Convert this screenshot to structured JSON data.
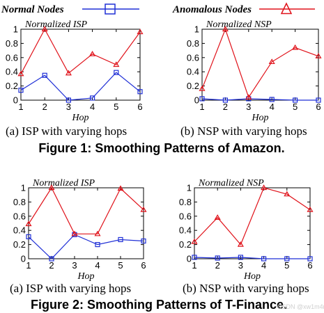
{
  "legend": {
    "normal": {
      "label": "Normal Nodes",
      "color": "#1f2fd6",
      "marker": "square-icon"
    },
    "anomalous": {
      "label": "Anomalous Nodes",
      "color": "#e0121a",
      "marker": "triangle-icon"
    }
  },
  "figures": [
    {
      "caption": "Figure 1: Smoothing Patterns of Amazon.",
      "panels": [
        {
          "title": "Normalized ISP",
          "caption": "(a) ISP with varying hops"
        },
        {
          "title": "Normalized NSP",
          "caption": "(b) NSP with varying hops"
        }
      ]
    },
    {
      "caption": "Figure 2: Smoothing Patterns of T-Finance.",
      "panels": [
        {
          "title": "Normalized ISP",
          "caption": "(a) ISP with varying hops"
        },
        {
          "title": "Normalized NSP",
          "caption": "(b) NSP with varying hops"
        }
      ]
    }
  ],
  "watermark": "CSDN @xw1m4r",
  "chart_data": [
    {
      "type": "line",
      "title": "Normalized ISP",
      "xlabel": "Hop",
      "ylabel": "",
      "x": [
        1,
        2,
        3,
        4,
        5,
        6
      ],
      "xlim": [
        1,
        6
      ],
      "ylim": [
        0,
        1
      ],
      "yticks": [
        "0",
        "0.2",
        "0.4",
        "0.6",
        "0.8",
        "1"
      ],
      "series": [
        {
          "name": "Normal Nodes",
          "values": [
            0.14,
            0.35,
            0.0,
            0.03,
            0.39,
            0.12
          ]
        },
        {
          "name": "Anomalous Nodes",
          "values": [
            0.37,
            1.0,
            0.38,
            0.65,
            0.5,
            0.96
          ]
        }
      ]
    },
    {
      "type": "line",
      "title": "Normalized NSP",
      "xlabel": "Hop",
      "ylabel": "",
      "x": [
        1,
        2,
        3,
        4,
        5,
        6
      ],
      "xlim": [
        1,
        6
      ],
      "ylim": [
        0,
        1
      ],
      "yticks": [
        "0",
        "0.2",
        "0.4",
        "0.6",
        "0.8",
        "1"
      ],
      "series": [
        {
          "name": "Normal Nodes",
          "values": [
            0.02,
            0.0,
            0.02,
            0.01,
            0.0,
            0.0
          ]
        },
        {
          "name": "Anomalous Nodes",
          "values": [
            0.16,
            1.0,
            0.04,
            0.54,
            0.74,
            0.62
          ]
        }
      ]
    },
    {
      "type": "line",
      "title": "Normalized ISP",
      "xlabel": "Hop",
      "ylabel": "",
      "x": [
        1,
        2,
        3,
        4,
        5,
        6
      ],
      "xlim": [
        1,
        6
      ],
      "ylim": [
        0,
        1
      ],
      "yticks": [
        "0",
        "0.2",
        "0.4",
        "0.6",
        "0.8",
        "1"
      ],
      "series": [
        {
          "name": "Normal Nodes",
          "values": [
            0.31,
            0.0,
            0.34,
            0.2,
            0.27,
            0.25
          ]
        },
        {
          "name": "Anomalous Nodes",
          "values": [
            0.49,
            1.0,
            0.35,
            0.35,
            0.99,
            0.69
          ]
        }
      ]
    },
    {
      "type": "line",
      "title": "Normalized NSP",
      "xlabel": "Hop",
      "ylabel": "",
      "x": [
        1,
        2,
        3,
        4,
        5,
        6
      ],
      "xlim": [
        1,
        6
      ],
      "ylim": [
        0,
        1
      ],
      "yticks": [
        "0",
        "0.2",
        "0.4",
        "0.6",
        "0.8",
        "1"
      ],
      "series": [
        {
          "name": "Normal Nodes",
          "values": [
            0.02,
            0.01,
            0.02,
            0.0,
            0.0,
            0.0
          ]
        },
        {
          "name": "Anomalous Nodes",
          "values": [
            0.24,
            0.58,
            0.2,
            1.0,
            0.91,
            0.69
          ]
        }
      ]
    }
  ]
}
